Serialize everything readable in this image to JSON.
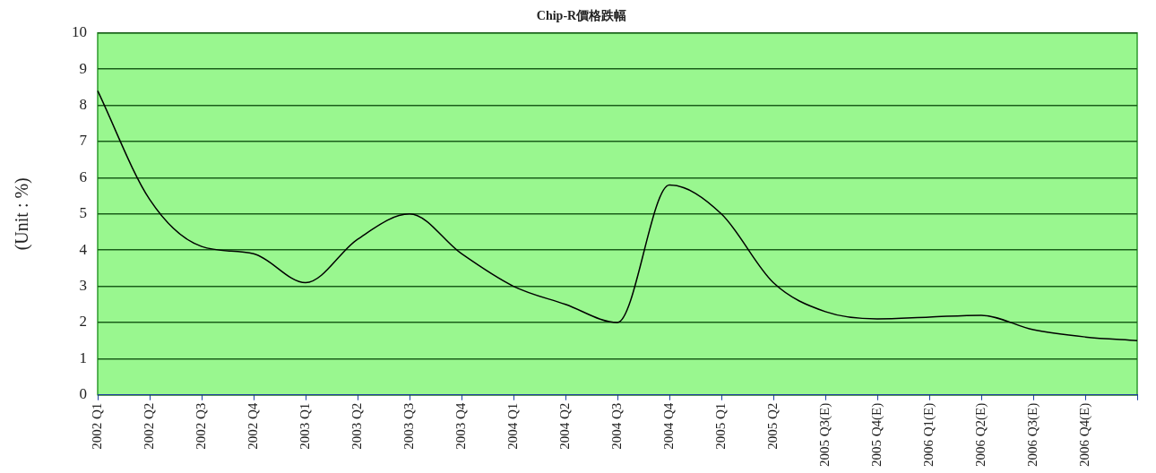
{
  "chart_data": {
    "type": "line",
    "title": "Chip-R價格跌幅",
    "ylabel": "(Unit : %)",
    "categories": [
      "2002 Q1",
      "2002 Q2",
      "2002 Q3",
      "2002 Q4",
      "2003 Q1",
      "2003 Q2",
      "2003 Q3",
      "2003 Q4",
      "2004 Q1",
      "2004 Q2",
      "2004 Q3",
      "2004 Q4",
      "2005 Q1",
      "2005 Q2",
      "2005 Q3(E)",
      "2005 Q4(E)",
      "2006 Q1(E)",
      "2006 Q2(E)",
      "2006 Q3(E)",
      "2006 Q4(E)",
      null
    ],
    "series": [
      {
        "color": "#000000",
        "values": [
          8.4,
          5.4,
          4.1,
          3.9,
          3.1,
          4.3,
          5.0,
          3.9,
          3.0,
          2.5,
          2.0,
          5.8,
          5.0,
          3.1,
          2.3,
          2.1,
          2.15,
          2.2,
          1.8,
          1.6,
          1.5
        ]
      }
    ],
    "ylim": [
      0,
      10
    ],
    "yticks": [
      0,
      1,
      2,
      3,
      4,
      5,
      6,
      7,
      8,
      9,
      10
    ],
    "grid": "y",
    "legend": false,
    "marker": "none",
    "line_style": "solid"
  }
}
